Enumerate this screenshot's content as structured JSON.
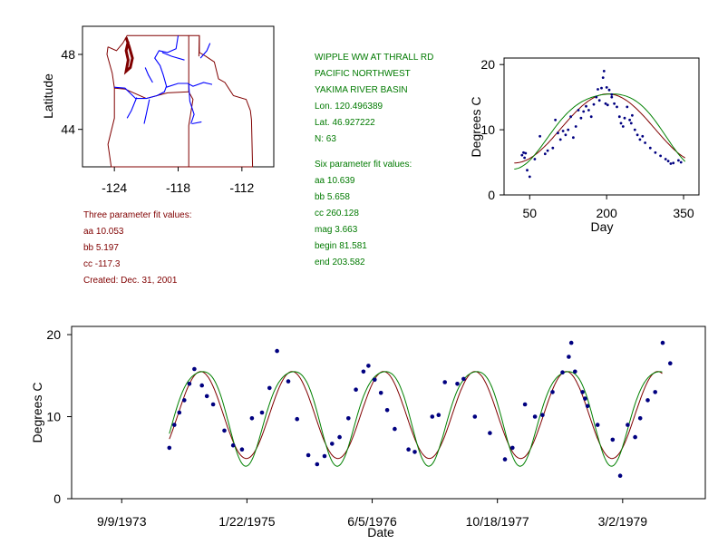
{
  "site": {
    "title": "WIPPLE WW AT THRALL RD",
    "region": "PACIFIC NORTHWEST",
    "basin": "YAKIMA RIVER BASIN",
    "lon": "Lon. 120.496389",
    "lat": "Lat. 46.927222",
    "n": "N: 63"
  },
  "six_param": {
    "heading": "Six parameter fit values:",
    "aa": "aa 10.639",
    "bb": "bb 5.658",
    "cc": "cc 260.128",
    "mag": "mag 3.663",
    "begin": "begin 81.581",
    "end": "end 203.582"
  },
  "three_param": {
    "heading": "Three parameter fit values:",
    "aa": "aa 10.053",
    "bb": "bb 5.197",
    "cc": "cc -117.3",
    "created": "Created:   Dec. 31, 2001"
  },
  "colors": {
    "three_param_fit": "#800000",
    "six_param_fit": "#008000",
    "points": "#000080",
    "rivers": "#0000ff",
    "borders": "#800000"
  },
  "chart_data": [
    {
      "type": "map",
      "ylabel": "Latitude",
      "x_ticks": [
        "-124",
        "-118",
        "-112"
      ],
      "y_ticks": [
        "48",
        "44"
      ],
      "xlim": [
        -127,
        -109
      ],
      "ylim": [
        42,
        49.5
      ]
    },
    {
      "type": "scatter",
      "xlabel": "Day",
      "ylabel": "Degrees C",
      "x_ticks": [
        "50",
        "200",
        "350"
      ],
      "y_ticks": [
        "0",
        "10",
        "20"
      ],
      "xlim": [
        0,
        380
      ],
      "ylim": [
        0,
        21
      ],
      "points": [
        [
          35,
          6.1
        ],
        [
          38,
          6.5
        ],
        [
          40,
          5.7
        ],
        [
          42,
          6.4
        ],
        [
          45,
          3.8
        ],
        [
          50,
          2.8
        ],
        [
          60,
          5.5
        ],
        [
          70,
          9.0
        ],
        [
          80,
          6.3
        ],
        [
          85,
          6.8
        ],
        [
          95,
          7.2
        ],
        [
          100,
          11.5
        ],
        [
          105,
          9.5
        ],
        [
          110,
          8.5
        ],
        [
          115,
          9.8
        ],
        [
          120,
          9.2
        ],
        [
          125,
          10.0
        ],
        [
          130,
          12.0
        ],
        [
          135,
          8.8
        ],
        [
          140,
          10.5
        ],
        [
          145,
          13.0
        ],
        [
          150,
          11.8
        ],
        [
          155,
          12.8
        ],
        [
          160,
          13.6
        ],
        [
          165,
          13.0
        ],
        [
          170,
          12.0
        ],
        [
          175,
          13.9
        ],
        [
          180,
          15.0
        ],
        [
          183,
          16.2
        ],
        [
          186,
          14.5
        ],
        [
          190,
          16.4
        ],
        [
          193,
          18.0
        ],
        [
          195,
          19.0
        ],
        [
          198,
          14.0
        ],
        [
          200,
          16.5
        ],
        [
          202,
          13.8
        ],
        [
          205,
          16.1
        ],
        [
          210,
          15.0
        ],
        [
          215,
          14.0
        ],
        [
          220,
          13.5
        ],
        [
          225,
          12.0
        ],
        [
          228,
          11.0
        ],
        [
          232,
          10.5
        ],
        [
          235,
          11.8
        ],
        [
          240,
          13.5
        ],
        [
          245,
          11.5
        ],
        [
          250,
          12.2
        ],
        [
          255,
          10.0
        ],
        [
          260,
          9.2
        ],
        [
          265,
          8.5
        ],
        [
          270,
          9.0
        ],
        [
          275,
          8.0
        ],
        [
          285,
          7.2
        ],
        [
          295,
          6.5
        ],
        [
          305,
          6.0
        ],
        [
          315,
          5.5
        ],
        [
          320,
          5.2
        ],
        [
          325,
          4.8
        ],
        [
          330,
          4.9
        ],
        [
          340,
          5.3
        ],
        [
          345,
          5.0
        ],
        [
          210,
          15.4
        ],
        [
          248,
          11.0
        ]
      ],
      "three_param_fit": {
        "aa": 10.053,
        "bb": 5.197,
        "cc": -117.3
      },
      "six_param_fit": {
        "aa": 10.639,
        "bb": 5.658,
        "cc": 260.128,
        "mag": 3.663,
        "begin": 81.581,
        "end": 203.582
      }
    },
    {
      "type": "scatter",
      "xlabel": "Date",
      "ylabel": "Degrees C",
      "x_ticks": [
        "9/9/1973",
        "1/22/1975",
        "6/5/1976",
        "10/18/1977",
        "3/2/1979"
      ],
      "x_tick_days": [
        0,
        500,
        1000,
        1500,
        2000
      ],
      "y_ticks": [
        "0",
        "10",
        "20"
      ],
      "xlim_days": [
        -200,
        2330
      ],
      "ylim": [
        0,
        21
      ],
      "fit_range_days": [
        190,
        2160
      ],
      "points": [
        [
          190,
          6.2
        ],
        [
          210,
          9.0
        ],
        [
          230,
          10.5
        ],
        [
          250,
          12.0
        ],
        [
          270,
          14.0
        ],
        [
          290,
          15.8
        ],
        [
          320,
          13.8
        ],
        [
          340,
          12.5
        ],
        [
          365,
          11.5
        ],
        [
          410,
          8.3
        ],
        [
          445,
          6.5
        ],
        [
          480,
          6.0
        ],
        [
          520,
          9.8
        ],
        [
          560,
          10.5
        ],
        [
          590,
          13.5
        ],
        [
          620,
          18.0
        ],
        [
          665,
          14.3
        ],
        [
          700,
          9.7
        ],
        [
          745,
          5.3
        ],
        [
          780,
          4.2
        ],
        [
          810,
          5.2
        ],
        [
          840,
          6.7
        ],
        [
          870,
          7.5
        ],
        [
          905,
          9.8
        ],
        [
          935,
          13.3
        ],
        [
          965,
          15.5
        ],
        [
          985,
          16.2
        ],
        [
          1010,
          14.5
        ],
        [
          1035,
          12.9
        ],
        [
          1060,
          10.8
        ],
        [
          1090,
          8.5
        ],
        [
          1145,
          6.0
        ],
        [
          1170,
          5.7
        ],
        [
          1240,
          10.0
        ],
        [
          1265,
          10.2
        ],
        [
          1290,
          14.2
        ],
        [
          1340,
          14.0
        ],
        [
          1365,
          14.6
        ],
        [
          1410,
          10.0
        ],
        [
          1470,
          8.0
        ],
        [
          1530,
          4.8
        ],
        [
          1560,
          6.2
        ],
        [
          1610,
          11.5
        ],
        [
          1650,
          10.0
        ],
        [
          1680,
          10.2
        ],
        [
          1720,
          13.0
        ],
        [
          1760,
          15.4
        ],
        [
          1785,
          17.3
        ],
        [
          1795,
          19.0
        ],
        [
          1810,
          15.5
        ],
        [
          1840,
          13.0
        ],
        [
          1850,
          12.2
        ],
        [
          1860,
          11.3
        ],
        [
          1900,
          9.0
        ],
        [
          1960,
          7.2
        ],
        [
          1990,
          2.8
        ],
        [
          2020,
          9.0
        ],
        [
          2050,
          7.5
        ],
        [
          2070,
          9.8
        ],
        [
          2100,
          12.0
        ],
        [
          2130,
          13.0
        ],
        [
          2160,
          19.0
        ],
        [
          2190,
          16.5
        ]
      ]
    }
  ]
}
